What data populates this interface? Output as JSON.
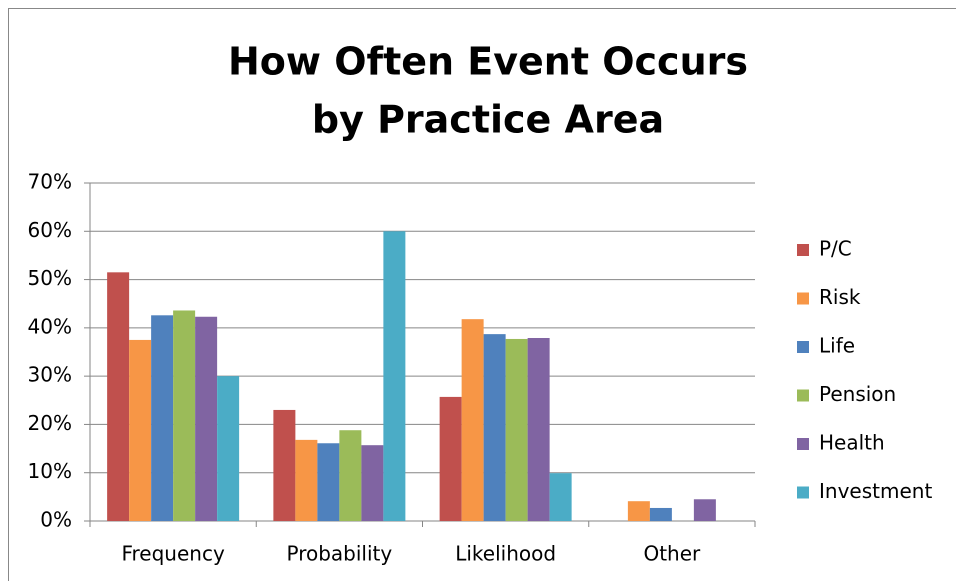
{
  "chart_data": {
    "type": "bar",
    "title": [
      "How Often Event Occurs",
      "by Practice Area"
    ],
    "categories": [
      "Frequency",
      "Probability",
      "Likelihood",
      "Other"
    ],
    "series": [
      {
        "name": "P/C",
        "color": "#c0504d",
        "values": [
          51.5,
          23,
          25.7,
          0
        ]
      },
      {
        "name": "Risk",
        "color": "#f79646",
        "values": [
          37.5,
          16.8,
          41.8,
          4.1
        ]
      },
      {
        "name": "Life",
        "color": "#4f81bd",
        "values": [
          42.6,
          16.1,
          38.7,
          2.7
        ]
      },
      {
        "name": "Pension",
        "color": "#9bbb59",
        "values": [
          43.6,
          18.8,
          37.7,
          0
        ]
      },
      {
        "name": "Health",
        "color": "#8064a2",
        "values": [
          42.3,
          15.7,
          37.9,
          4.5
        ]
      },
      {
        "name": "Investment",
        "color": "#4bacc6",
        "values": [
          30,
          60,
          9.9,
          0
        ]
      }
    ],
    "ylim": [
      0,
      70
    ],
    "yticks": [
      {
        "value": 0,
        "label": "0%"
      },
      {
        "value": 10,
        "label": "10%"
      },
      {
        "value": 20,
        "label": "20%"
      },
      {
        "value": 30,
        "label": "30%"
      },
      {
        "value": 40,
        "label": "40%"
      },
      {
        "value": 50,
        "label": "50%"
      },
      {
        "value": 60,
        "label": "60%"
      },
      {
        "value": 70,
        "label": "70%"
      }
    ],
    "grid": true,
    "legend": "right"
  }
}
